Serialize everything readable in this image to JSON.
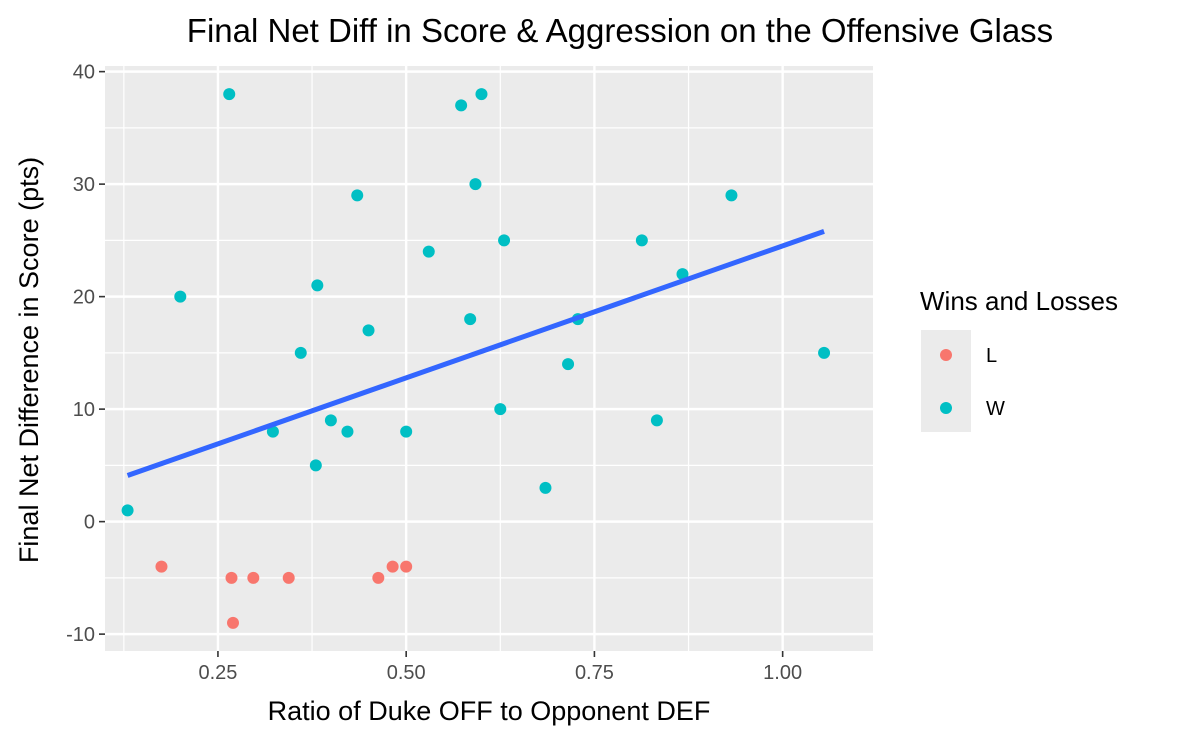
{
  "chart_data": {
    "type": "scatter",
    "title": "Final Net Diff in Score & Aggression on the Offensive Glass",
    "xlabel": "Ratio of Duke OFF to Opponent DEF",
    "ylabel": "Final Net Difference in Score (pts)",
    "xlim": [
      0.1,
      1.12
    ],
    "ylim": [
      -11.5,
      40.5
    ],
    "x_ticks": [
      0.25,
      0.5,
      0.75,
      1.0
    ],
    "x_tick_labels": [
      "0.25",
      "0.50",
      "0.75",
      "1.00"
    ],
    "y_ticks": [
      -10,
      0,
      10,
      20,
      30,
      40
    ],
    "y_tick_labels": [
      "-10",
      "0",
      "10",
      "20",
      "30",
      "40"
    ],
    "grid": true,
    "legend": {
      "title": "Wins and Losses",
      "position": "right",
      "entries": [
        {
          "label": "L",
          "color": "#F8766D"
        },
        {
          "label": "W",
          "color": "#00BFC4"
        }
      ]
    },
    "series": [
      {
        "name": "L",
        "color": "#F8766D",
        "points": [
          {
            "x": 0.175,
            "y": -4
          },
          {
            "x": 0.268,
            "y": -5
          },
          {
            "x": 0.27,
            "y": -9
          },
          {
            "x": 0.297,
            "y": -5
          },
          {
            "x": 0.344,
            "y": -5
          },
          {
            "x": 0.463,
            "y": -5
          },
          {
            "x": 0.482,
            "y": -4
          },
          {
            "x": 0.5,
            "y": -4
          }
        ]
      },
      {
        "name": "W",
        "color": "#00BFC4",
        "points": [
          {
            "x": 0.13,
            "y": 1
          },
          {
            "x": 0.2,
            "y": 20
          },
          {
            "x": 0.265,
            "y": 38
          },
          {
            "x": 0.323,
            "y": 8
          },
          {
            "x": 0.36,
            "y": 15
          },
          {
            "x": 0.38,
            "y": 5
          },
          {
            "x": 0.382,
            "y": 21
          },
          {
            "x": 0.4,
            "y": 9
          },
          {
            "x": 0.422,
            "y": 8
          },
          {
            "x": 0.435,
            "y": 29
          },
          {
            "x": 0.45,
            "y": 17
          },
          {
            "x": 0.5,
            "y": 8
          },
          {
            "x": 0.53,
            "y": 24
          },
          {
            "x": 0.573,
            "y": 37
          },
          {
            "x": 0.585,
            "y": 18
          },
          {
            "x": 0.592,
            "y": 30
          },
          {
            "x": 0.6,
            "y": 38
          },
          {
            "x": 0.625,
            "y": 10
          },
          {
            "x": 0.63,
            "y": 25
          },
          {
            "x": 0.685,
            "y": 3
          },
          {
            "x": 0.715,
            "y": 14
          },
          {
            "x": 0.728,
            "y": 18
          },
          {
            "x": 0.813,
            "y": 25
          },
          {
            "x": 0.833,
            "y": 9
          },
          {
            "x": 0.867,
            "y": 22
          },
          {
            "x": 0.932,
            "y": 29
          },
          {
            "x": 1.055,
            "y": 15
          }
        ]
      }
    ],
    "trendline": {
      "type": "linear",
      "color": "#3366FF",
      "points": [
        {
          "x": 0.13,
          "y": 4.1
        },
        {
          "x": 1.055,
          "y": 25.8
        }
      ]
    }
  }
}
